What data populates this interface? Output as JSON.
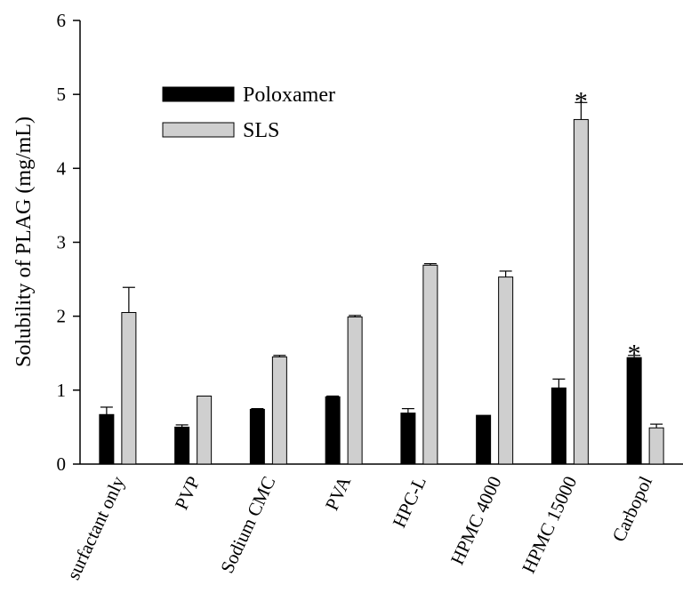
{
  "chart_data": {
    "type": "bar",
    "ylabel": "Solubility of PLAG (mg/mL)",
    "xlabel": "",
    "ylim": [
      0,
      6
    ],
    "yticks": [
      0,
      1,
      2,
      3,
      4,
      5,
      6
    ],
    "legend_position": "top-left",
    "categories": [
      "surfactant only",
      "PVP",
      "Sodium CMC",
      "PVA",
      "HPC-L",
      "HPMC 4000",
      "HPMC 15000",
      "Carbopol"
    ],
    "series": [
      {
        "name": "Poloxamer",
        "color": "#000000",
        "values": [
          0.67,
          0.5,
          0.74,
          0.91,
          0.69,
          0.66,
          1.03,
          1.44
        ],
        "errors": [
          0.1,
          0.03,
          0.01,
          0.01,
          0.06,
          0.0,
          0.12,
          0.03
        ],
        "significant": [
          false,
          false,
          false,
          false,
          false,
          false,
          false,
          true
        ]
      },
      {
        "name": "SLS",
        "color": "#cfcfcf",
        "values": [
          2.05,
          0.92,
          1.45,
          1.99,
          2.69,
          2.53,
          4.66,
          0.49
        ],
        "errors": [
          0.34,
          0.0,
          0.02,
          0.02,
          0.02,
          0.08,
          0.23,
          0.05
        ],
        "significant": [
          false,
          false,
          false,
          false,
          false,
          false,
          true,
          false
        ]
      }
    ],
    "significance_marker": "*"
  }
}
